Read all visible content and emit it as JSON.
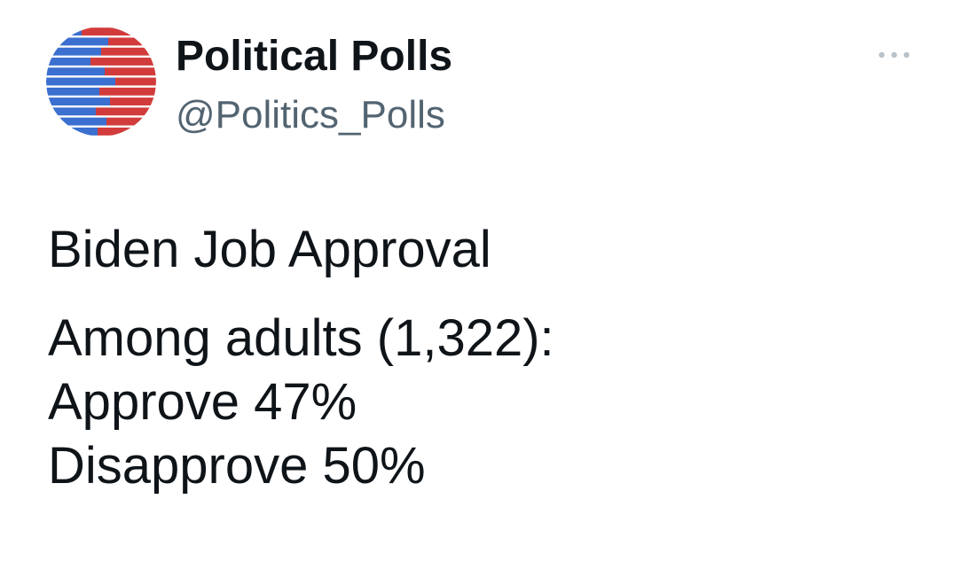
{
  "account": {
    "display_name": "Political Polls",
    "handle": "@Politics_Polls",
    "avatar_icon": "political-polls-logo",
    "colors": {
      "blue": "#3b6fd0",
      "red": "#d23b3b"
    }
  },
  "more_icon": "ellipsis-icon",
  "tweet": {
    "title": "Biden Job Approval",
    "sample_line": "Among adults (1,322):",
    "approve_line": "Approve 47%",
    "disapprove_line": "Disapprove 50%"
  }
}
